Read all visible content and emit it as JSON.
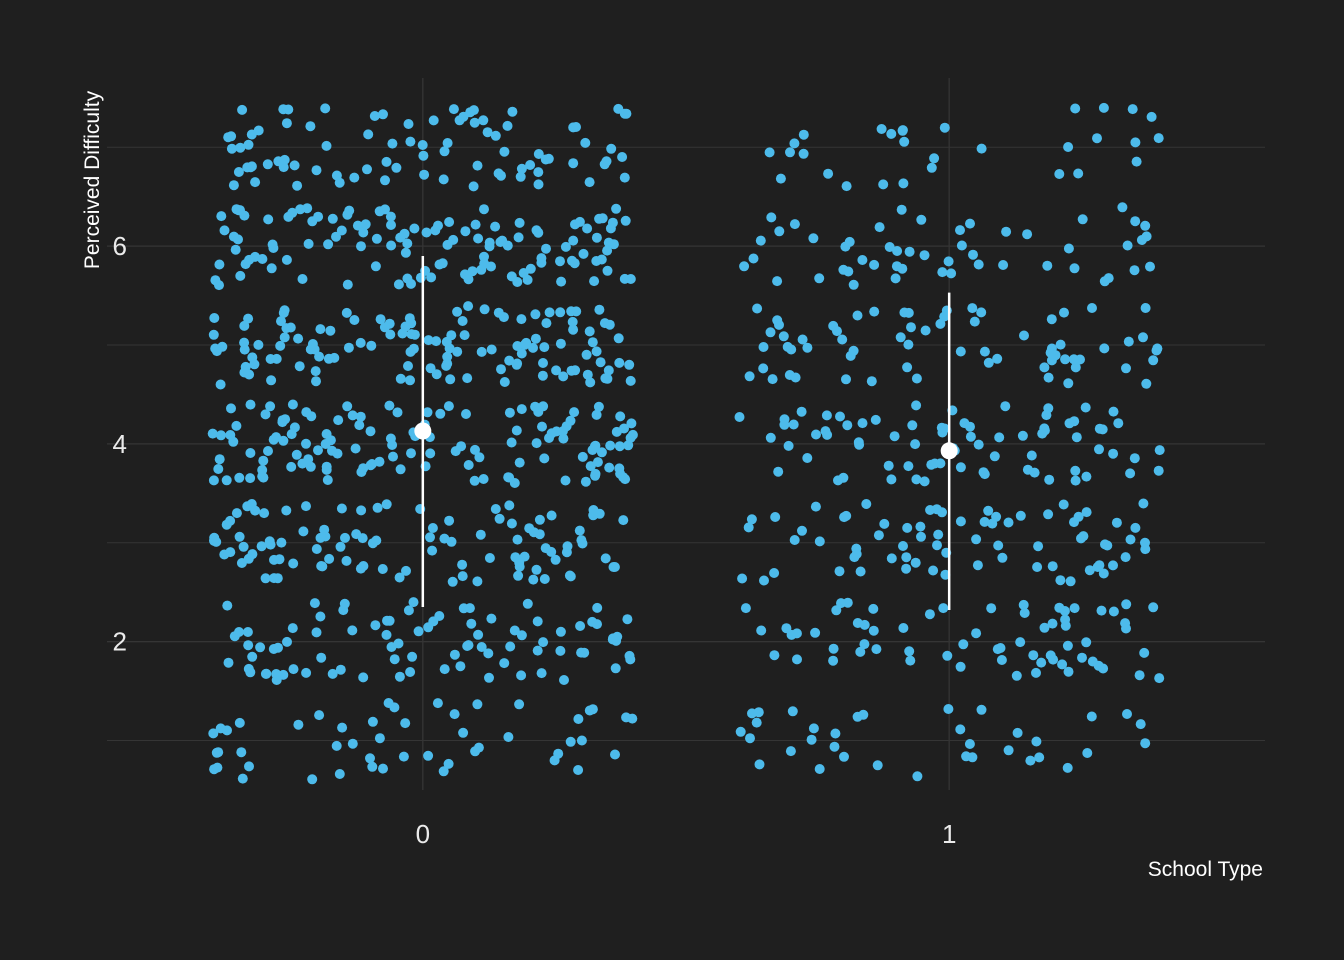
{
  "chart_data": {
    "type": "scatter",
    "subtype": "jittered strip plot with mean and error bar per group",
    "title": "",
    "xlabel": "School Type",
    "ylabel": "Perceived Difficulty",
    "x_categories": [
      "0",
      "1"
    ],
    "x_ticks": [
      0,
      1
    ],
    "y_ticks": [
      2,
      4,
      6
    ],
    "ylim": [
      0.5,
      7.7
    ],
    "xlim": [
      -0.6,
      1.6
    ],
    "grid": true,
    "legend": "none",
    "colors": {
      "background": "#1f1f1f",
      "points": "#4dbbeb",
      "summary": "#ffffff",
      "grid": "#353535",
      "text": "#ebebeb"
    },
    "jitter": {
      "width": 0.4,
      "points_group_0": 700,
      "points_group_1": 400,
      "rating_levels": [
        1,
        2,
        3,
        4,
        5,
        6,
        7
      ]
    },
    "summary": [
      {
        "group": "0",
        "mean": 4.13,
        "lower": 2.35,
        "upper": 5.9
      },
      {
        "group": "1",
        "mean": 3.93,
        "lower": 2.32,
        "upper": 5.53
      }
    ]
  }
}
